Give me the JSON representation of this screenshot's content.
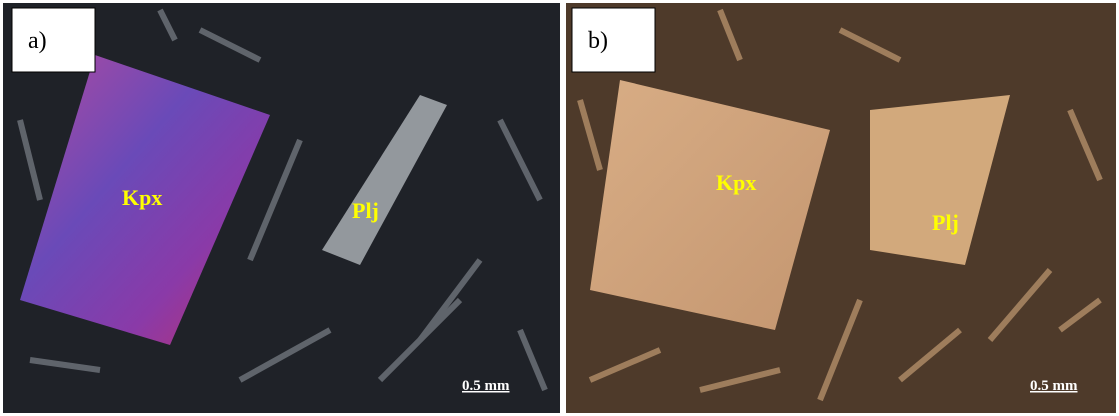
{
  "panels": [
    {
      "label": "a)",
      "annotations": [
        "Kpx",
        "Plj"
      ],
      "scale": "0.5 mm"
    },
    {
      "label": "b)",
      "annotations": [
        "Kpx",
        "Plj"
      ],
      "scale": "0.5 mm"
    }
  ]
}
